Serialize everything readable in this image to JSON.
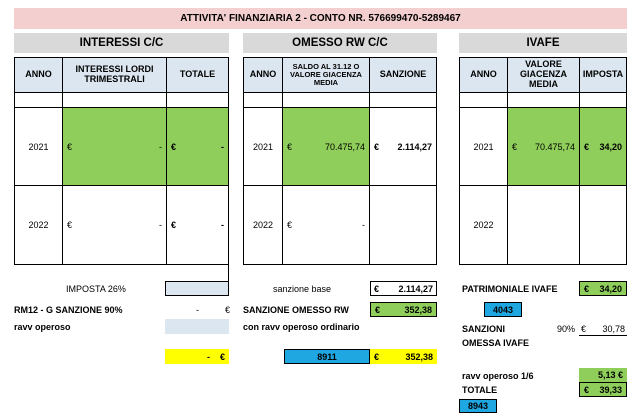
{
  "title": "ATTIVITA' FINANZIARIA 2 - CONTO NR. 576699470-5289467",
  "sections": {
    "interessi": {
      "title": "INTERESSI C/C",
      "headers": [
        "ANNO",
        "INTERESSI LORDI TRIMESTRALI",
        "TOTALE"
      ],
      "rows": [
        {
          "anno": "2021",
          "interessi": "-",
          "totale": "-"
        },
        {
          "anno": "2022",
          "interessi": "-",
          "totale": "-"
        }
      ]
    },
    "omesso": {
      "title": "OMESSO RW C/C",
      "headers": [
        "ANNO",
        "SALDO AL 31.12 O VALORE GIACENZA MEDIA",
        "SANZIONE"
      ],
      "rows": [
        {
          "anno": "2021",
          "saldo": "70.475,74",
          "sanzione": "2.114,27"
        },
        {
          "anno": "2022",
          "saldo": "-",
          "sanzione": ""
        }
      ]
    },
    "ivafe": {
      "title": "IVAFE",
      "headers": [
        "ANNO",
        "VALORE GIACENZA MEDIA",
        "IMPOSTA"
      ],
      "rows": [
        {
          "anno": "2021",
          "valore": "70.475,74",
          "imposta": "34,20"
        },
        {
          "anno": "2022",
          "valore": "",
          "imposta": ""
        }
      ]
    }
  },
  "currency": "€",
  "bottom": {
    "imposta_label": "IMPOSTA 26%",
    "rm12_label": "RM12 - G  SANZIONE 90%",
    "rm12_value": "-",
    "ravv_label": "ravv operoso",
    "yellow_value": "-",
    "sanzione_base_label": "sanzione base",
    "sanzione_base_value": "2.114,27",
    "sanzione_omesso_label": "SANZIONE OMESSO RW",
    "sanzione_omesso_value": "352,38",
    "ravv_ordinario_label": "con ravv operoso ordinario",
    "code_8911": "8911",
    "ravv_ordinario_value": "352,38",
    "patrimoniale_label": "PATRIMONIALE IVAFE",
    "patrimoniale_value": "34,20",
    "code_4043": "4043",
    "sanzioni_label": "SANZIONI",
    "omessa_label": "OMESSA IVAFE",
    "pct": "90%",
    "sanzioni_value": "30,78",
    "ravv16_label": "ravv operoso 1/6",
    "ravv16_value": "5,13 €",
    "totale_label": "TOTALE",
    "totale_value": "39,33",
    "code_8943": "8943"
  }
}
